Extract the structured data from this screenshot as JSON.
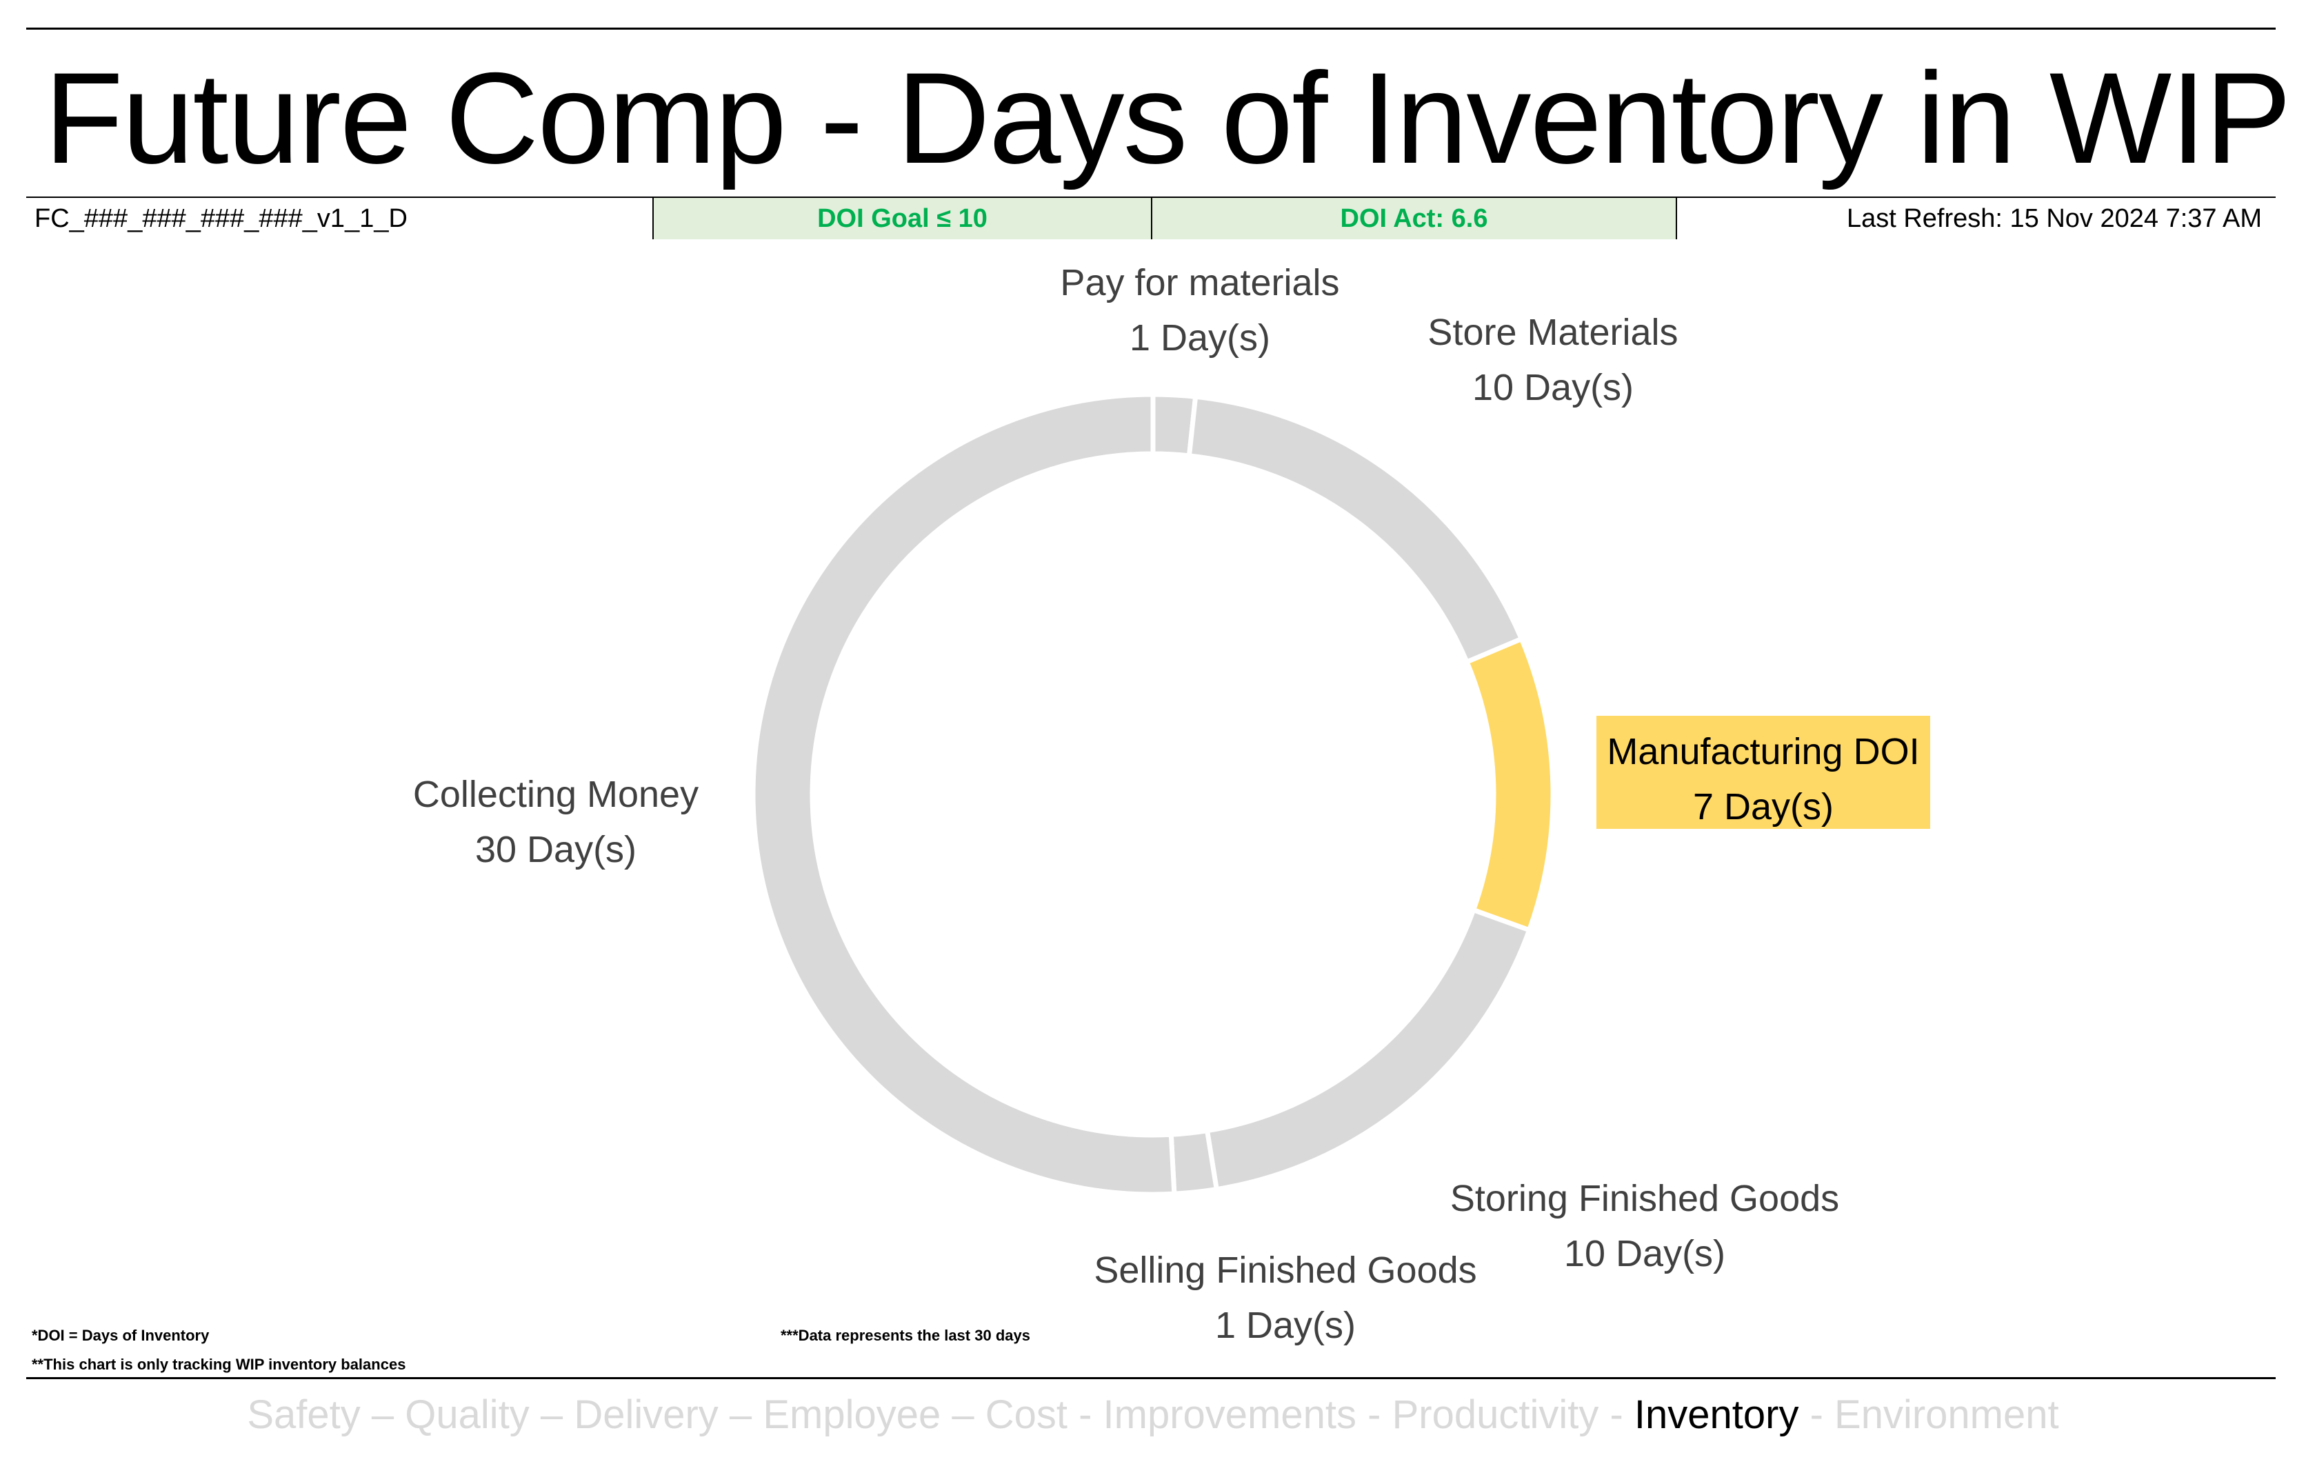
{
  "title": "Future Comp - Days of Inventory in WIP",
  "info_bar": {
    "report_id": "FC_###_###_###_###_v1_1_D",
    "doi_goal": "DOI Goal ≤ 10",
    "doi_act": "DOI Act: 6.6",
    "last_refresh": "Last Refresh: 15 Nov 2024 7:37 AM"
  },
  "chart_data": {
    "type": "pie",
    "variant": "doughnut",
    "unit": "Day(s)",
    "categories": [
      "Pay for materials",
      "Store Materials",
      "Manufacturing DOI",
      "Storing Finished Goods",
      "Selling Finished Goods",
      "Collecting Money"
    ],
    "values": [
      1,
      10,
      7,
      10,
      1,
      30
    ],
    "value_labels": [
      "1 Day(s)",
      "10 Day(s)",
      "7 Day(s)",
      "10 Day(s)",
      "1 Day(s)",
      "30 Day(s)"
    ],
    "highlighted": "Manufacturing DOI",
    "colors": {
      "default": "#d9d9d9",
      "highlight": "#ffd966",
      "border": "#ffffff",
      "label": "#404040"
    }
  },
  "footnotes": {
    "doi": "*DOI = Days of Inventory",
    "wip": "**This chart is only tracking WIP inventory balances",
    "data": "***Data represents the last 30 days"
  },
  "pillars": [
    {
      "label": "Safety",
      "sep": " – "
    },
    {
      "label": "Quality",
      "sep": " – "
    },
    {
      "label": "Delivery",
      "sep": " – "
    },
    {
      "label": "Employee",
      "sep": " – "
    },
    {
      "label": "Cost",
      "sep": " - "
    },
    {
      "label": "Improvements",
      "sep": " - "
    },
    {
      "label": "Productivity",
      "sep": " - "
    },
    {
      "label": "Inventory",
      "sep": " - ",
      "active": true
    },
    {
      "label": "Environment",
      "sep": ""
    }
  ]
}
